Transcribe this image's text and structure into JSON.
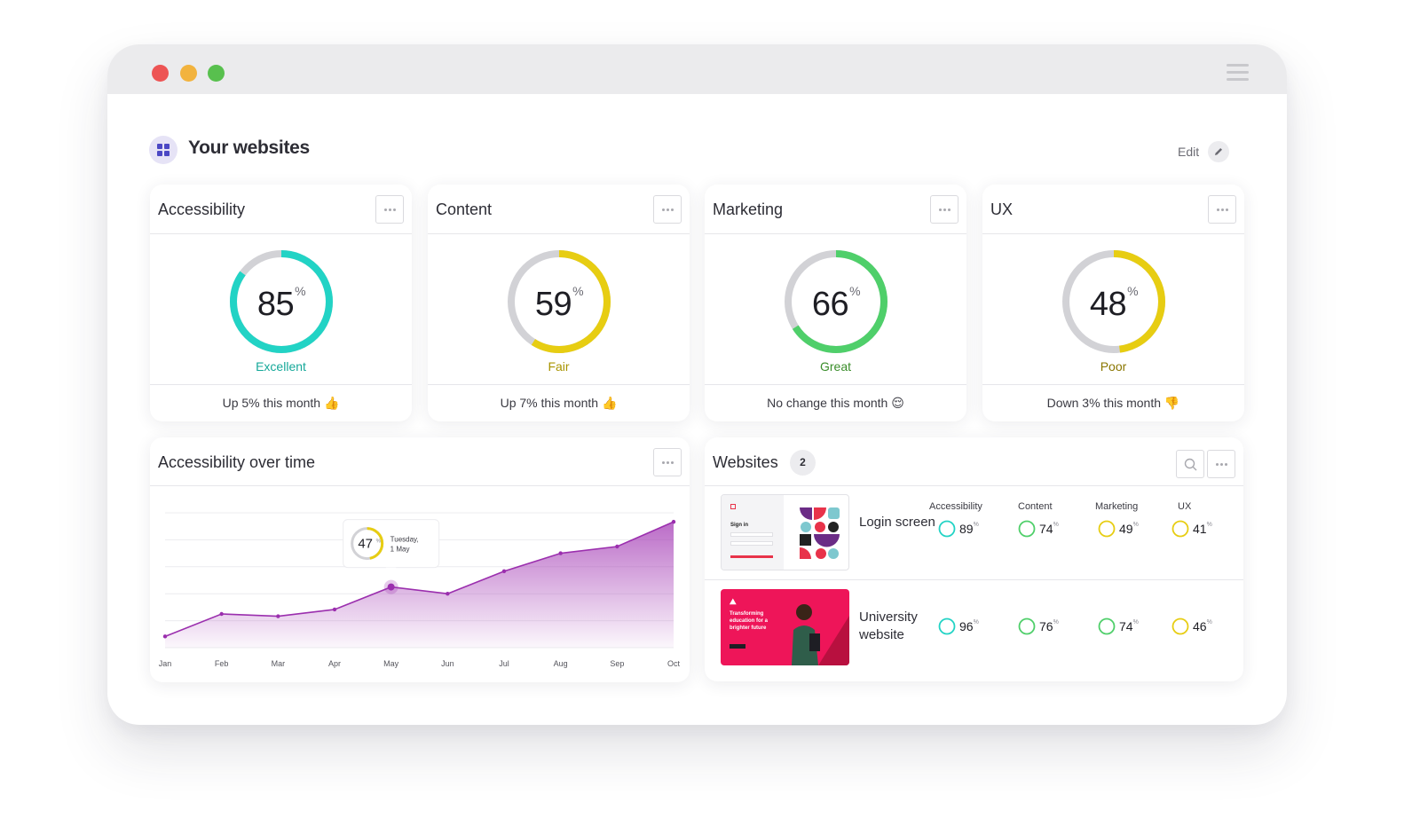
{
  "header": {
    "title": "Your websites",
    "edit_label": "Edit"
  },
  "score_cards": [
    {
      "title": "Accessibility",
      "value": 85,
      "unit": "%",
      "rating": "Excellent",
      "rating_color": "#15a899",
      "ring_color": "#22d3c5",
      "change": "Up 5% this month",
      "emoji": "👍"
    },
    {
      "title": "Content",
      "value": 59,
      "unit": "%",
      "rating": "Fair",
      "rating_color": "#a89400",
      "ring_color": "#e7cd12",
      "change": "Up 7% this month",
      "emoji": "👍"
    },
    {
      "title": "Marketing",
      "value": 66,
      "unit": "%",
      "rating": "Great",
      "rating_color": "#3a8d2a",
      "ring_color": "#4fcf6a",
      "change": "No change this month",
      "emoji": "😌"
    },
    {
      "title": "UX",
      "value": 48,
      "unit": "%",
      "rating": "Poor",
      "rating_color": "#8a7600",
      "ring_color": "#e7cd12",
      "change": "Down 3% this month",
      "emoji": "👎"
    }
  ],
  "chart_data": {
    "type": "area",
    "title": "Accessibility over time",
    "categories": [
      "Jan",
      "Feb",
      "Mar",
      "Apr",
      "May",
      "Jun",
      "Jul",
      "Aug",
      "Sep",
      "Oct"
    ],
    "series": [
      {
        "values": [
          25,
          35,
          34,
          37,
          47,
          44,
          54,
          62,
          65,
          76
        ]
      }
    ],
    "ylim": [
      20,
      80
    ],
    "color": "#9b2fae",
    "tooltip": {
      "value": "47",
      "unit": "%",
      "day": "Tuesday,",
      "date": "1 May",
      "index": 4
    }
  },
  "websites": {
    "title": "Websites",
    "count": "2",
    "columns": [
      "Accessibility",
      "Content",
      "Marketing",
      "UX"
    ],
    "rows": [
      {
        "name": "Login screen",
        "thumb_text": "Sign in",
        "scores": [
          {
            "v": "89",
            "c": "#22d3c5"
          },
          {
            "v": "74",
            "c": "#4fcf6a"
          },
          {
            "v": "49",
            "c": "#e7cd12"
          },
          {
            "v": "41",
            "c": "#e7cd12"
          }
        ]
      },
      {
        "name": "University website",
        "thumb_text": "Transforming education for a brighter future",
        "scores": [
          {
            "v": "96",
            "c": "#22d3c5"
          },
          {
            "v": "76",
            "c": "#4fcf6a"
          },
          {
            "v": "74",
            "c": "#4fcf6a"
          },
          {
            "v": "46",
            "c": "#e7cd12"
          }
        ]
      }
    ],
    "unit": "%"
  }
}
